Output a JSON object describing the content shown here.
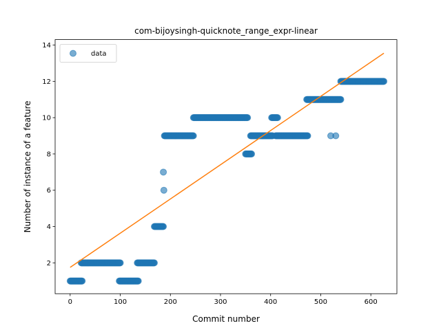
{
  "chart_data": {
    "type": "scatter",
    "title": "com-bijoysingh-quicknote_range_expr-linear",
    "xlabel": "Commit number",
    "ylabel": "Number of instance of a feature",
    "xlim": [
      -30,
      652
    ],
    "ylim": [
      0.3,
      14.3
    ],
    "xticks": [
      0,
      100,
      200,
      300,
      400,
      500,
      600
    ],
    "yticks": [
      2,
      4,
      6,
      8,
      10,
      12,
      14
    ],
    "grid": false,
    "legend": {
      "placement": "top-left",
      "entries": [
        "data"
      ]
    },
    "colors": {
      "points": "#1f77b4",
      "fit_line": "#ff7f0e"
    },
    "series": [
      {
        "name": "data",
        "kind": "points",
        "segments": [
          {
            "x_start": 0,
            "x_end": 24,
            "y": 1
          },
          {
            "x_start": 22,
            "x_end": 100,
            "y": 2
          },
          {
            "x_start": 98,
            "x_end": 136,
            "y": 1
          },
          {
            "x_start": 134,
            "x_end": 168,
            "y": 2
          },
          {
            "x_start": 168,
            "x_end": 186,
            "y": 4
          },
          {
            "x_start": 188,
            "x_end": 246,
            "y": 9
          },
          {
            "x_start": 246,
            "x_end": 354,
            "y": 10
          },
          {
            "x_start": 350,
            "x_end": 362,
            "y": 8
          },
          {
            "x_start": 360,
            "x_end": 404,
            "y": 9
          },
          {
            "x_start": 402,
            "x_end": 414,
            "y": 10
          },
          {
            "x_start": 410,
            "x_end": 474,
            "y": 9
          },
          {
            "x_start": 472,
            "x_end": 540,
            "y": 11
          },
          {
            "x_start": 540,
            "x_end": 626,
            "y": 12
          }
        ],
        "points": [
          {
            "x": 186,
            "y": 7
          },
          {
            "x": 187,
            "y": 6
          },
          {
            "x": 520,
            "y": 9
          },
          {
            "x": 530,
            "y": 9
          }
        ]
      },
      {
        "kind": "line",
        "x": [
          0,
          626
        ],
        "y": [
          1.75,
          13.55
        ]
      }
    ]
  }
}
